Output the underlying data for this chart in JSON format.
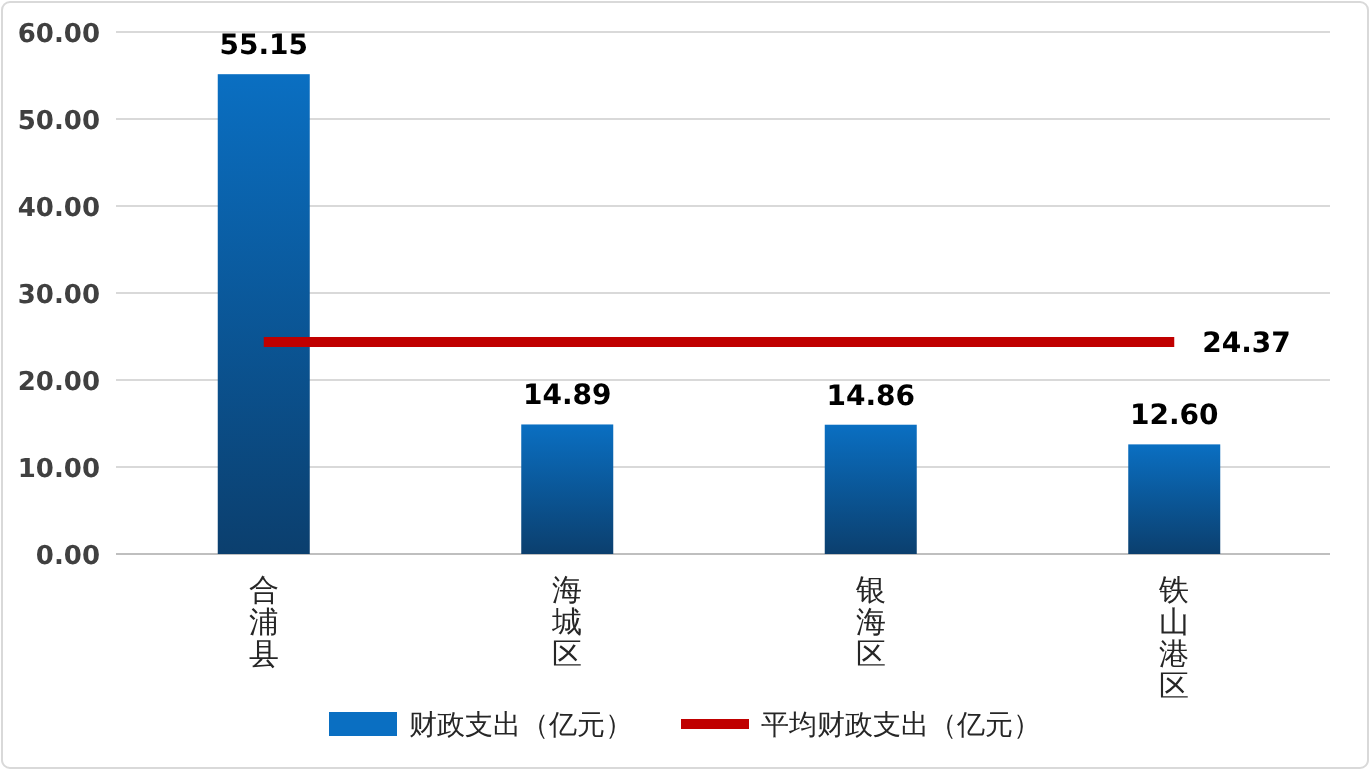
{
  "chart_data": {
    "type": "bar",
    "categories": [
      "合浦县",
      "海城区",
      "银海区",
      "铁山港区"
    ],
    "series": [
      {
        "name": "财政支出（亿元）",
        "color": "#0a6fc2",
        "values": [
          55.15,
          14.89,
          14.86,
          12.6
        ],
        "value_labels": [
          "55.15",
          "14.89",
          "14.86",
          "12.60"
        ]
      },
      {
        "name": "平均财政支出（亿元）",
        "type": "line",
        "color": "#c00000",
        "values": [
          24.37,
          24.37,
          24.37,
          24.37
        ],
        "value_labels": [
          null,
          null,
          null,
          "24.37"
        ]
      }
    ],
    "ylim": [
      0,
      60
    ],
    "yticks": [
      {
        "value": 0,
        "label": "0.00"
      },
      {
        "value": 10,
        "label": "10.00"
      },
      {
        "value": 20,
        "label": "20.00"
      },
      {
        "value": 30,
        "label": "30.00"
      },
      {
        "value": 40,
        "label": "40.00"
      },
      {
        "value": 50,
        "label": "50.00"
      },
      {
        "value": 60,
        "label": "60.00"
      }
    ],
    "grid": "y",
    "legend": "bottom"
  }
}
